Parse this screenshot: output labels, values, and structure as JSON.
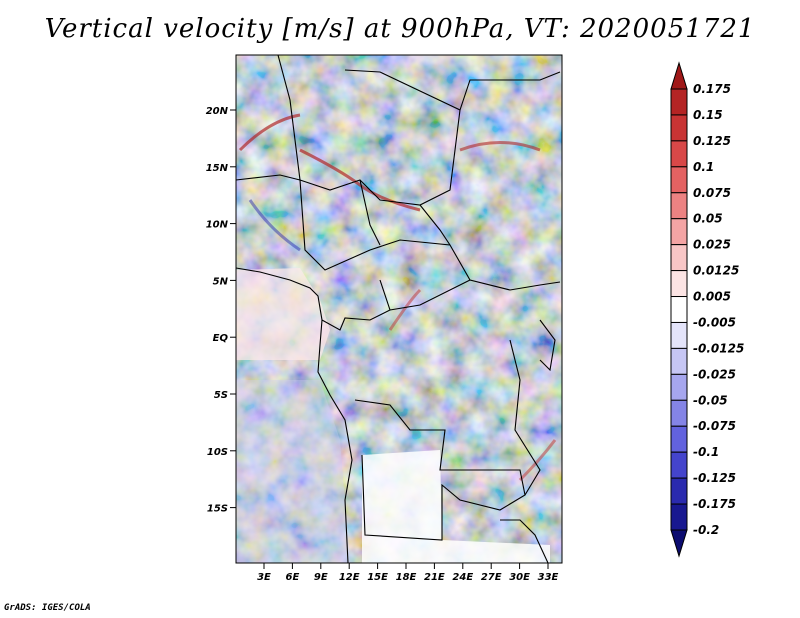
{
  "title": "Vertical velocity [m/s] at 900hPa, VT: 2020051721",
  "footer": "GrADS: IGES/COLA",
  "map": {
    "lat_ticks": [
      "20N",
      "15N",
      "10N",
      "5N",
      "EQ",
      "5S",
      "10S",
      "15S"
    ],
    "lon_ticks": [
      "3E",
      "6E",
      "9E",
      "12E",
      "15E",
      "18E",
      "21E",
      "24E",
      "27E",
      "30E",
      "33E"
    ]
  },
  "colorbar": {
    "levels": [
      "0.175",
      "0.15",
      "0.125",
      "0.1",
      "0.075",
      "0.05",
      "0.025",
      "0.0125",
      "0.005",
      "-0.005",
      "-0.0125",
      "-0.025",
      "-0.05",
      "-0.075",
      "-0.1",
      "-0.125",
      "-0.175",
      "-0.2"
    ],
    "colors": [
      "#a01818",
      "#b42424",
      "#c83434",
      "#d84848",
      "#e46262",
      "#ec8282",
      "#f4a4a4",
      "#f8c6c6",
      "#fce4e4",
      "#ffffff",
      "#e4e4fa",
      "#c6c6f4",
      "#a6a6ee",
      "#8484e6",
      "#6262de",
      "#4444cc",
      "#2a2aae",
      "#181890",
      "#0c0c70"
    ]
  }
}
